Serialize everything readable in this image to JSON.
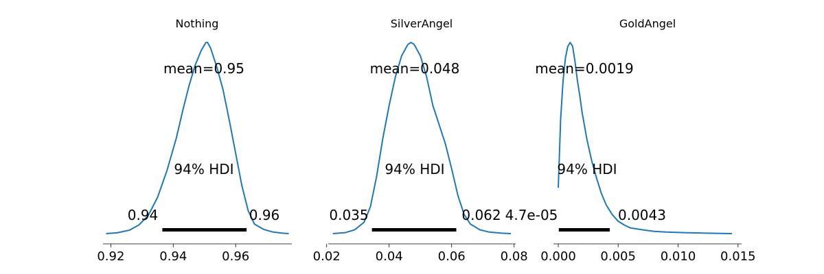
{
  "chart_data": [
    {
      "type": "line",
      "title": "Nothing",
      "xlabel": "",
      "ylabel": "",
      "xlim": [
        0.9175,
        0.978
      ],
      "x_ticks": [
        0.92,
        0.94,
        0.96
      ],
      "x_tick_labels": [
        "0.92",
        "0.94",
        "0.96"
      ],
      "density": {
        "x": [
          0.9185,
          0.922,
          0.926,
          0.929,
          0.932,
          0.935,
          0.938,
          0.941,
          0.943,
          0.945,
          0.947,
          0.949,
          0.9505,
          0.951,
          0.952,
          0.954,
          0.956,
          0.958,
          0.96,
          0.962,
          0.964,
          0.966,
          0.969,
          0.972,
          0.975,
          0.977
        ],
        "y": [
          0.0,
          0.004,
          0.018,
          0.045,
          0.095,
          0.19,
          0.33,
          0.5,
          0.64,
          0.77,
          0.88,
          0.96,
          1.0,
          1.0,
          0.97,
          0.87,
          0.75,
          0.59,
          0.42,
          0.25,
          0.12,
          0.05,
          0.022,
          0.008,
          0.002,
          0.0
        ]
      },
      "mean_label": "mean=0.95",
      "hdi_label": "94% HDI",
      "hdi": [
        0.9365,
        0.9635
      ],
      "hdi_low_label": "0.94",
      "hdi_high_label": "0.96",
      "color": "#1f77b4"
    },
    {
      "type": "line",
      "title": "SilverAngel",
      "xlabel": "",
      "ylabel": "",
      "xlim": [
        0.0205,
        0.0805
      ],
      "x_ticks": [
        0.02,
        0.04,
        0.06,
        0.08
      ],
      "x_tick_labels": [
        "0.02",
        "0.04",
        "0.06",
        "0.08"
      ],
      "density": {
        "x": [
          0.022,
          0.026,
          0.029,
          0.032,
          0.034,
          0.036,
          0.038,
          0.04,
          0.042,
          0.044,
          0.046,
          0.047,
          0.048,
          0.05,
          0.052,
          0.054,
          0.056,
          0.058,
          0.06,
          0.062,
          0.064,
          0.066,
          0.069,
          0.072,
          0.076,
          0.079
        ],
        "y": [
          0.0,
          0.005,
          0.02,
          0.06,
          0.14,
          0.3,
          0.5,
          0.67,
          0.82,
          0.93,
          0.99,
          1.0,
          0.99,
          0.93,
          0.82,
          0.67,
          0.57,
          0.47,
          0.34,
          0.2,
          0.1,
          0.05,
          0.02,
          0.008,
          0.002,
          0.0
        ]
      },
      "mean_label": "mean=0.048",
      "hdi_label": "94% HDI",
      "hdi": [
        0.0345,
        0.0615
      ],
      "hdi_low_label": "0.035",
      "hdi_high_label": "0.062",
      "color": "#1f77b4"
    },
    {
      "type": "line",
      "title": "GoldAngel",
      "xlabel": "",
      "ylabel": "",
      "xlim": [
        -0.0004,
        0.0153
      ],
      "x_ticks": [
        0.0,
        0.005,
        0.01,
        0.015
      ],
      "x_tick_labels": [
        "0.000",
        "0.005",
        "0.010",
        "0.015"
      ],
      "density": {
        "x": [
          0.0,
          0.0002,
          0.0004,
          0.0006,
          0.0008,
          0.001,
          0.0012,
          0.0014,
          0.0016,
          0.0018,
          0.002,
          0.0024,
          0.0028,
          0.0032,
          0.0036,
          0.004,
          0.0045,
          0.005,
          0.0055,
          0.006,
          0.007,
          0.008,
          0.009,
          0.0105,
          0.012,
          0.0135,
          0.0145
        ],
        "y": [
          0.24,
          0.6,
          0.8,
          0.92,
          0.98,
          1.0,
          0.98,
          0.9,
          0.8,
          0.72,
          0.63,
          0.49,
          0.38,
          0.29,
          0.21,
          0.15,
          0.1,
          0.065,
          0.045,
          0.03,
          0.02,
          0.012,
          0.008,
          0.005,
          0.003,
          0.001,
          0.0
        ]
      },
      "mean_label": "mean=0.0019",
      "hdi_label": "94% HDI",
      "hdi": [
        4.7e-05,
        0.0043
      ],
      "hdi_low_label": "4.7e-05",
      "hdi_high_label": "0.0043",
      "color": "#1f77b4"
    }
  ]
}
